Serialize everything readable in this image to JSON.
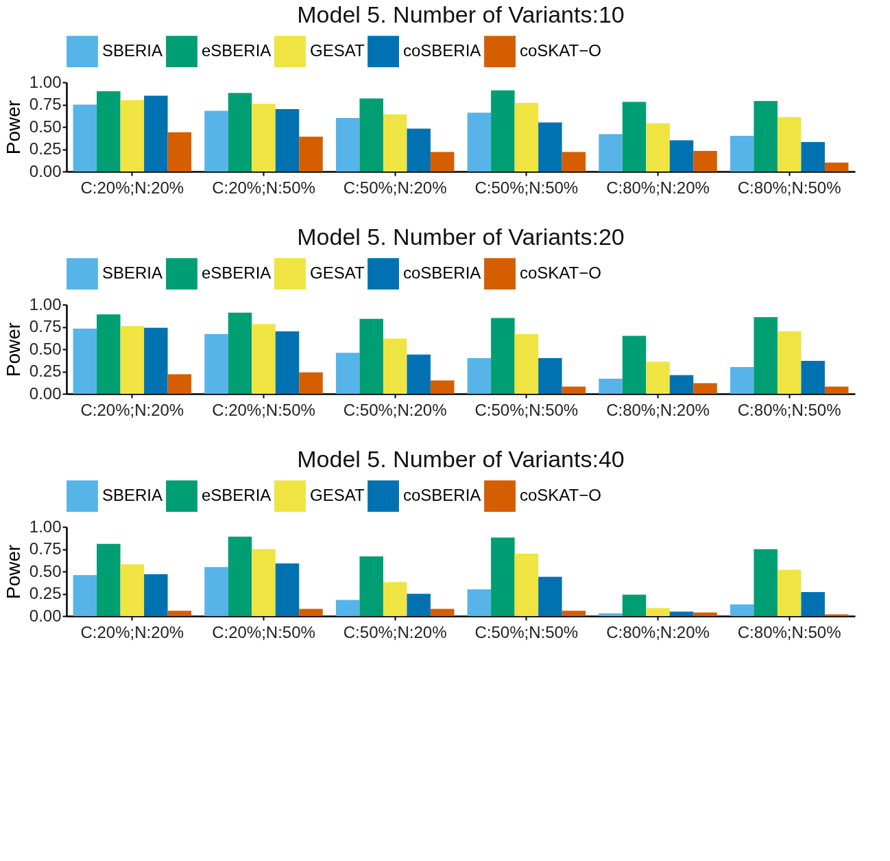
{
  "chart_data": [
    {
      "type": "bar",
      "title": "Model 5. Number of Variants:10",
      "ylabel": "Power",
      "categories": [
        "C:20%;N:20%",
        "C:20%;N:50%",
        "C:50%;N:20%",
        "C:50%;N:50%",
        "C:80%;N:20%",
        "C:80%;N:50%"
      ],
      "ylim": [
        0,
        1
      ],
      "yticks": [
        {
          "value": 0,
          "label": "0.00"
        },
        {
          "value": 0.25,
          "label": "0.25"
        },
        {
          "value": 0.5,
          "label": "0.50"
        },
        {
          "value": 0.75,
          "label": "0.75"
        },
        {
          "value": 1,
          "label": "1.00"
        }
      ],
      "grid": false,
      "legend": "top",
      "series": [
        {
          "name": "SBERIA",
          "color": "#56b4e9",
          "values": [
            0.75,
            0.68,
            0.6,
            0.66,
            0.42,
            0.4
          ]
        },
        {
          "name": "eSBERIA",
          "color": "#009e73",
          "values": [
            0.9,
            0.88,
            0.82,
            0.91,
            0.78,
            0.79
          ]
        },
        {
          "name": "GESAT",
          "color": "#f0e442",
          "values": [
            0.8,
            0.76,
            0.64,
            0.77,
            0.54,
            0.61
          ]
        },
        {
          "name": "coSBERIA",
          "color": "#0072b2",
          "values": [
            0.85,
            0.7,
            0.48,
            0.55,
            0.35,
            0.33
          ]
        },
        {
          "name": "coSKAT−O",
          "color": "#d55e00",
          "values": [
            0.44,
            0.39,
            0.22,
            0.22,
            0.23,
            0.1
          ]
        }
      ]
    },
    {
      "type": "bar",
      "title": "Model 5. Number of Variants:20",
      "ylabel": "Power",
      "categories": [
        "C:20%;N:20%",
        "C:20%;N:50%",
        "C:50%;N:20%",
        "C:50%;N:50%",
        "C:80%;N:20%",
        "C:80%;N:50%"
      ],
      "ylim": [
        0,
        1
      ],
      "yticks": [
        {
          "value": 0,
          "label": "0.00"
        },
        {
          "value": 0.25,
          "label": "0.25"
        },
        {
          "value": 0.5,
          "label": "0.50"
        },
        {
          "value": 0.75,
          "label": "0.75"
        },
        {
          "value": 1,
          "label": "1.00"
        }
      ],
      "grid": false,
      "legend": "top",
      "series": [
        {
          "name": "SBERIA",
          "color": "#56b4e9",
          "values": [
            0.73,
            0.67,
            0.46,
            0.4,
            0.17,
            0.3
          ]
        },
        {
          "name": "eSBERIA",
          "color": "#009e73",
          "values": [
            0.89,
            0.91,
            0.84,
            0.85,
            0.65,
            0.86
          ]
        },
        {
          "name": "GESAT",
          "color": "#f0e442",
          "values": [
            0.76,
            0.78,
            0.62,
            0.67,
            0.36,
            0.7
          ]
        },
        {
          "name": "coSBERIA",
          "color": "#0072b2",
          "values": [
            0.74,
            0.7,
            0.44,
            0.4,
            0.21,
            0.37
          ]
        },
        {
          "name": "coSKAT−O",
          "color": "#d55e00",
          "values": [
            0.22,
            0.24,
            0.15,
            0.08,
            0.12,
            0.08
          ]
        }
      ]
    },
    {
      "type": "bar",
      "title": "Model 5. Number of Variants:40",
      "ylabel": "Power",
      "categories": [
        "C:20%;N:20%",
        "C:20%;N:50%",
        "C:50%;N:20%",
        "C:50%;N:50%",
        "C:80%;N:20%",
        "C:80%;N:50%"
      ],
      "ylim": [
        0,
        1
      ],
      "yticks": [
        {
          "value": 0,
          "label": "0.00"
        },
        {
          "value": 0.25,
          "label": "0.25"
        },
        {
          "value": 0.5,
          "label": "0.50"
        },
        {
          "value": 0.75,
          "label": "0.75"
        },
        {
          "value": 1,
          "label": "1.00"
        }
      ],
      "grid": false,
      "legend": "top",
      "series": [
        {
          "name": "SBERIA",
          "color": "#56b4e9",
          "values": [
            0.46,
            0.55,
            0.18,
            0.3,
            0.03,
            0.13
          ]
        },
        {
          "name": "eSBERIA",
          "color": "#009e73",
          "values": [
            0.81,
            0.89,
            0.67,
            0.88,
            0.24,
            0.75
          ]
        },
        {
          "name": "GESAT",
          "color": "#f0e442",
          "values": [
            0.58,
            0.75,
            0.38,
            0.7,
            0.09,
            0.52
          ]
        },
        {
          "name": "coSBERIA",
          "color": "#0072b2",
          "values": [
            0.47,
            0.59,
            0.25,
            0.44,
            0.05,
            0.27
          ]
        },
        {
          "name": "coSKAT−O",
          "color": "#d55e00",
          "values": [
            0.06,
            0.08,
            0.08,
            0.06,
            0.04,
            0.02
          ]
        }
      ]
    }
  ]
}
